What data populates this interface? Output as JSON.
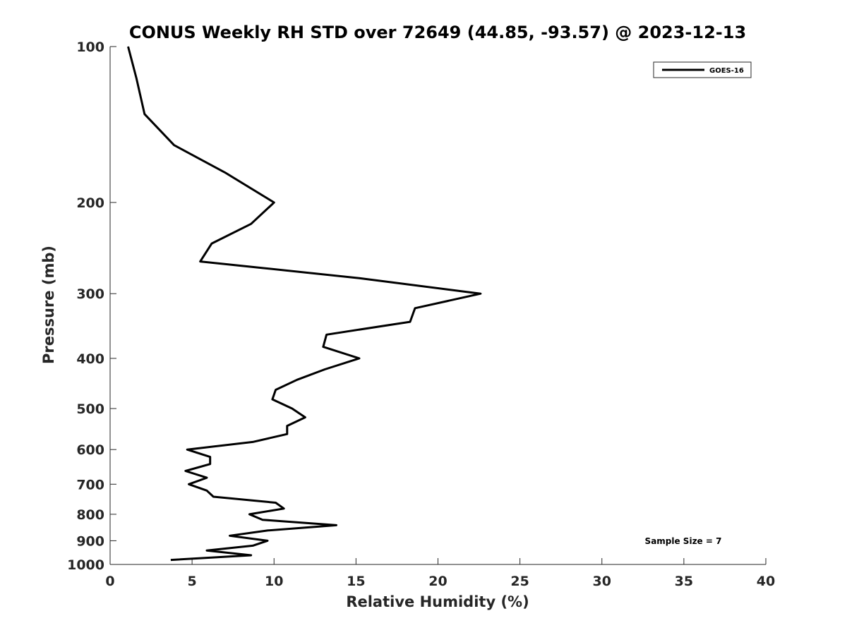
{
  "chart_data": {
    "type": "line",
    "title": "CONUS Weekly RH STD over 72649 (44.85, -93.57) @ 2023-12-13",
    "xlabel": "Relative Humidity (%)",
    "ylabel": "Pressure (mb)",
    "xlim": [
      0,
      40
    ],
    "ylim": [
      100,
      1000
    ],
    "yscale": "log",
    "yaxis_reversed": true,
    "grid": false,
    "x_ticks": [
      0,
      5,
      10,
      15,
      20,
      25,
      30,
      35,
      40
    ],
    "y_ticks": [
      100,
      200,
      300,
      400,
      500,
      600,
      700,
      800,
      900,
      1000
    ],
    "legend": {
      "placement": "top-right",
      "entries": [
        "GOES-16"
      ]
    },
    "annotation": "Sample Size = 7",
    "series": [
      {
        "name": "GOES-16",
        "color": "#000000",
        "x": [
          1.1,
          1.6,
          2.1,
          3.9,
          7.0,
          10.0,
          8.6,
          6.2,
          5.5,
          15.2,
          22.6,
          18.6,
          18.3,
          13.2,
          13.0,
          15.2,
          13.1,
          11.4,
          10.1,
          9.9,
          11.1,
          11.9,
          10.8,
          10.8,
          8.7,
          4.7,
          6.1,
          6.1,
          4.6,
          5.9,
          4.8,
          5.9,
          6.3,
          10.1,
          10.6,
          8.5,
          9.3,
          13.8,
          9.6,
          7.3,
          9.6,
          8.7,
          5.9,
          8.6,
          3.7
        ],
        "y": [
          100,
          115,
          135,
          155,
          175,
          200,
          220,
          240,
          260,
          280,
          300,
          320,
          340,
          360,
          380,
          400,
          420,
          440,
          460,
          480,
          500,
          520,
          540,
          560,
          580,
          600,
          620,
          640,
          660,
          680,
          700,
          720,
          740,
          760,
          780,
          800,
          820,
          840,
          860,
          880,
          900,
          920,
          940,
          960,
          980
        ]
      }
    ]
  }
}
